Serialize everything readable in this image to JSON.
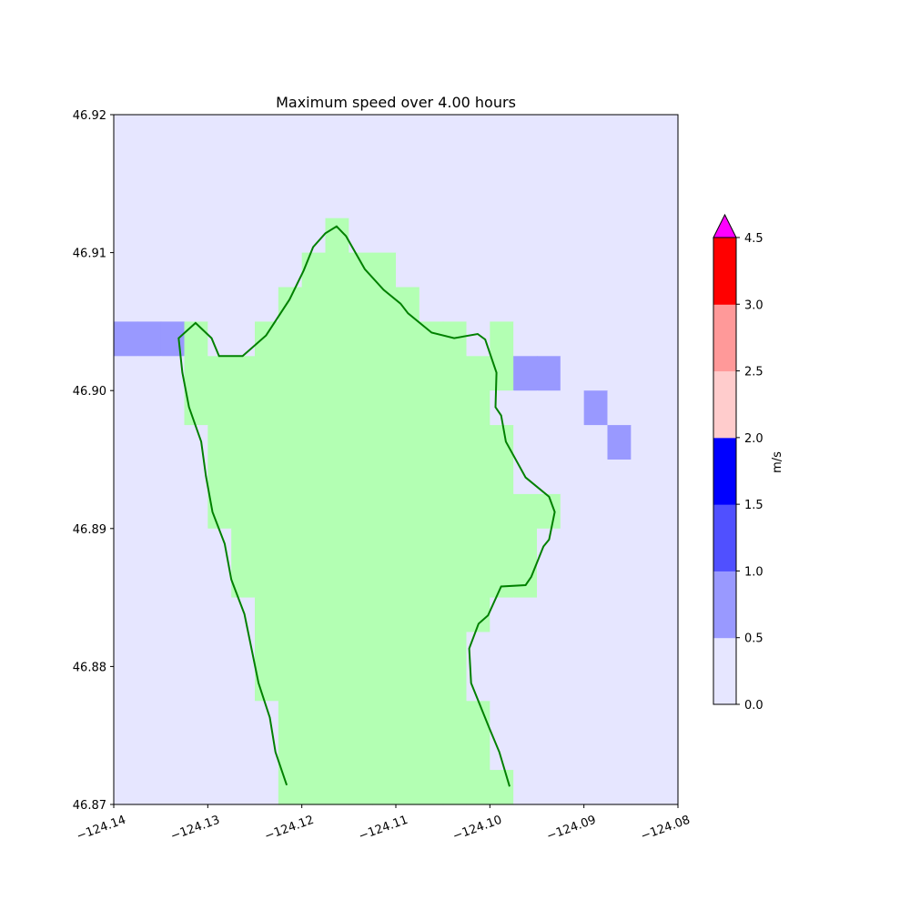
{
  "chart_data": {
    "type": "heatmap",
    "title": "Maximum speed over 4.00 hours",
    "xlim": [
      -124.14,
      -124.08
    ],
    "ylim": [
      46.87,
      46.92
    ],
    "xticks": [
      -124.14,
      -124.13,
      -124.12,
      -124.11,
      -124.1,
      -124.09,
      -124.08
    ],
    "xtick_labels": [
      "−124.14",
      "−124.13",
      "−124.12",
      "−124.11",
      "−124.10",
      "−124.09",
      "−124.08"
    ],
    "yticks": [
      46.87,
      46.88,
      46.89,
      46.9,
      46.91,
      46.92
    ],
    "ytick_labels": [
      "46.87",
      "46.88",
      "46.89",
      "46.90",
      "46.91",
      "46.92"
    ],
    "grid_cell_deg": 0.0025,
    "grid_legend": {
      "L": "land",
      "0": "0.0-0.5 m/s",
      "1": "0.5-1.0 m/s"
    },
    "grid_rows_north_to_south": [
      "000000000000000000000000",
      "000000000000000000000000",
      "000000000000000000000000",
      "000000000L00000000000000",
      "00000000LLLL000000000000",
      "0000000LLLLLL00000000000",
      "111L00LLLLLLLLL0L0000000",
      "000LLLLLLLLLLLLLL1100000",
      "000LLLLLLLLLLLLL00001000",
      "0000LLLLLLLLLLLLL0000100",
      "0000LLLLLLLLLLLLL0000000",
      "0000LLLLLLLLLLLLLLL00000",
      "00000LLLLLLLLLLLLL000000",
      "00000LLLLLLLLLLLLL000000",
      "000000LLLLLLLLLL00000000",
      "000000LLLLLLLLL000000000",
      "000000LLLLLLLLL000000000",
      "0000000LLLLLLLLL00000000",
      "0000000LLLLLLLLL00000000",
      "0000000LLLLLLLLLL0000000"
    ],
    "coastline_lonlat": [
      [
        -124.1216,
        46.8714
      ],
      [
        -124.1228,
        46.8738
      ],
      [
        -124.1234,
        46.8763
      ],
      [
        -124.1246,
        46.8788
      ],
      [
        -124.1261,
        46.8838
      ],
      [
        -124.1275,
        46.8863
      ],
      [
        -124.1282,
        46.8889
      ],
      [
        -124.1295,
        46.8912
      ],
      [
        -124.1302,
        46.8938
      ],
      [
        -124.1307,
        46.8963
      ],
      [
        -124.132,
        46.8988
      ],
      [
        -124.1327,
        46.9013
      ],
      [
        -124.1331,
        46.9038
      ],
      [
        -124.1313,
        46.9049
      ],
      [
        -124.1296,
        46.9038
      ],
      [
        -124.1288,
        46.9025
      ],
      [
        -124.1263,
        46.9025
      ],
      [
        -124.1238,
        46.904
      ],
      [
        -124.1213,
        46.9066
      ],
      [
        -124.1198,
        46.9087
      ],
      [
        -124.1188,
        46.9104
      ],
      [
        -124.1175,
        46.9114
      ],
      [
        -124.1163,
        46.9119
      ],
      [
        -124.1153,
        46.9112
      ],
      [
        -124.1133,
        46.9088
      ],
      [
        -124.1113,
        46.9073
      ],
      [
        -124.1095,
        46.9063
      ],
      [
        -124.1087,
        46.9056
      ],
      [
        -124.1062,
        46.9042
      ],
      [
        -124.1038,
        46.9038
      ],
      [
        -124.1013,
        46.9041
      ],
      [
        -124.1005,
        46.9037
      ],
      [
        -124.0993,
        46.9013
      ],
      [
        -124.0994,
        46.8988
      ],
      [
        -124.0988,
        46.8982
      ],
      [
        -124.0983,
        46.8963
      ],
      [
        -124.0962,
        46.8937
      ],
      [
        -124.0937,
        46.8923
      ],
      [
        -124.0931,
        46.8912
      ],
      [
        -124.0937,
        46.8892
      ],
      [
        -124.0943,
        46.8887
      ],
      [
        -124.0956,
        46.8865
      ],
      [
        -124.0962,
        46.8859
      ],
      [
        -124.0988,
        46.8858
      ],
      [
        -124.1002,
        46.8837
      ],
      [
        -124.1012,
        46.8831
      ],
      [
        -124.1022,
        46.8813
      ],
      [
        -124.102,
        46.8788
      ],
      [
        -124.1001,
        46.8756
      ],
      [
        -124.099,
        46.8738
      ],
      [
        -124.0979,
        46.8713
      ]
    ],
    "colorbar": {
      "label": "m/s",
      "boundaries": [
        0,
        0.5,
        1.0,
        1.5,
        2.0,
        2.5,
        3.0,
        4.5
      ],
      "tick_labels": [
        "0.0",
        "0.5",
        "1.0",
        "1.5",
        "2.0",
        "2.5",
        "3.0",
        "4.5"
      ],
      "colors": [
        "#e6e6ff",
        "#9999ff",
        "#5050ff",
        "#0000ff",
        "#ffcccc",
        "#ff9999",
        "#ff0000"
      ],
      "extend_max_color": "#ff00ff"
    },
    "land_color": "#b3ffb3",
    "coastline_color": "#008000"
  }
}
